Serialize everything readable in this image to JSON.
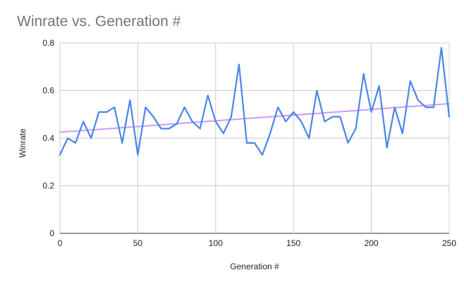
{
  "chart_data": {
    "type": "line",
    "title": "Winrate vs. Generation #",
    "xlabel": "Generation #",
    "ylabel": "Winrate",
    "xlim": [
      0,
      250
    ],
    "ylim": [
      0,
      0.8
    ],
    "x_ticks": [
      0,
      50,
      100,
      150,
      200,
      250
    ],
    "y_ticks": [
      0,
      0.2,
      0.4,
      0.6,
      0.8
    ],
    "y_tick_labels": [
      "0",
      "0.2",
      "0.4",
      "0.6",
      "0.8"
    ],
    "grid": true,
    "legend": "none",
    "series": [
      {
        "color": "#4a86e8",
        "x": [
          0,
          5,
          10,
          15,
          20,
          25,
          30,
          35,
          40,
          45,
          50,
          55,
          60,
          65,
          70,
          75,
          80,
          85,
          90,
          95,
          100,
          105,
          110,
          115,
          120,
          125,
          130,
          135,
          140,
          145,
          150,
          155,
          160,
          165,
          170,
          175,
          180,
          185,
          190,
          195,
          200,
          205,
          210,
          215,
          220,
          225,
          230,
          235,
          240,
          245,
          250
        ],
        "y": [
          0.33,
          0.4,
          0.38,
          0.47,
          0.4,
          0.51,
          0.51,
          0.53,
          0.38,
          0.56,
          0.33,
          0.53,
          0.49,
          0.44,
          0.44,
          0.46,
          0.53,
          0.47,
          0.44,
          0.58,
          0.47,
          0.42,
          0.49,
          0.71,
          0.38,
          0.38,
          0.33,
          0.42,
          0.53,
          0.47,
          0.51,
          0.47,
          0.4,
          0.6,
          0.47,
          0.49,
          0.49,
          0.38,
          0.44,
          0.67,
          0.51,
          0.62,
          0.36,
          0.53,
          0.42,
          0.64,
          0.56,
          0.53,
          0.53,
          0.78,
          0.49
        ]
      },
      {
        "kind": "trendline",
        "color": "#cc99ff",
        "x": [
          0,
          250
        ],
        "y": [
          0.425,
          0.545
        ]
      }
    ]
  }
}
